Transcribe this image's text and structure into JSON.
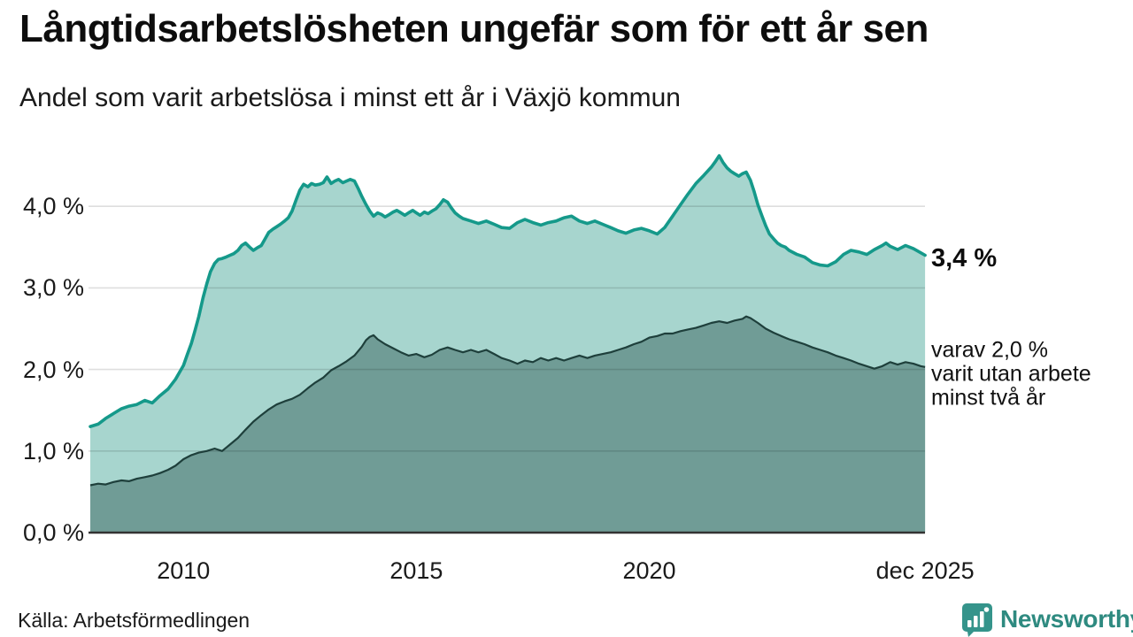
{
  "title": "Långtidsarbetslösheten ungefär som för ett år sen",
  "subtitle": "Andel som varit arbetslösa i minst ett år i Växjö kommun",
  "source": "Källa: Arbetsförmedlingen",
  "brand": {
    "name": "Newsworthy",
    "color": "#2e8a80",
    "icon_color": "#35948b"
  },
  "annotations": {
    "total": {
      "label": "3,4 %"
    },
    "subset": {
      "lines": [
        "varav 2,0 %",
        "varit utan arbete",
        "minst två år"
      ]
    }
  },
  "chart_data": {
    "type": "area",
    "title": "Långtidsarbetslösheten ungefär som för ett år sen",
    "subtitle_as_ylabel": "Andel som varit arbetslösa i minst ett år i Växjö kommun",
    "xlabel": "",
    "ylabel": "",
    "xlim": [
      2008.0,
      2025.92
    ],
    "ylim": [
      0,
      4.9
    ],
    "grid": true,
    "grid_values": [
      1,
      2,
      3,
      4
    ],
    "y_ticks": [
      {
        "value": 0,
        "label": "0,0 %"
      },
      {
        "value": 1,
        "label": "1,0 %"
      },
      {
        "value": 2,
        "label": "2,0 %"
      },
      {
        "value": 3,
        "label": "3,0 %"
      },
      {
        "value": 4,
        "label": "4,0 %"
      }
    ],
    "x_ticks": [
      {
        "value": 2010,
        "label": "2010"
      },
      {
        "value": 2015,
        "label": "2015"
      },
      {
        "value": 2020,
        "label": "2020"
      },
      {
        "value": 2025.92,
        "label": "dec 2025"
      }
    ],
    "colors": {
      "total_line": "#15998a",
      "total_fill": "#a7d5ce",
      "subset_line": "#1e3f3b",
      "subset_fill": "#709c96",
      "gridline": "rgba(0,0,0,0.13)",
      "baseline": "#333333"
    },
    "series": [
      {
        "name": "Andel arbetslösa minst ett år",
        "end_label": "3,4 %",
        "end_value": 3.4,
        "points": [
          [
            2008.0,
            1.3
          ],
          [
            2008.17,
            1.33
          ],
          [
            2008.33,
            1.4
          ],
          [
            2008.5,
            1.46
          ],
          [
            2008.67,
            1.52
          ],
          [
            2008.83,
            1.55
          ],
          [
            2009.0,
            1.57
          ],
          [
            2009.17,
            1.62
          ],
          [
            2009.33,
            1.59
          ],
          [
            2009.5,
            1.68
          ],
          [
            2009.67,
            1.76
          ],
          [
            2009.83,
            1.88
          ],
          [
            2010.0,
            2.05
          ],
          [
            2010.08,
            2.18
          ],
          [
            2010.17,
            2.32
          ],
          [
            2010.25,
            2.48
          ],
          [
            2010.33,
            2.65
          ],
          [
            2010.42,
            2.88
          ],
          [
            2010.5,
            3.05
          ],
          [
            2010.58,
            3.2
          ],
          [
            2010.67,
            3.3
          ],
          [
            2010.75,
            3.35
          ],
          [
            2010.83,
            3.36
          ],
          [
            2010.92,
            3.38
          ],
          [
            2011.0,
            3.4
          ],
          [
            2011.08,
            3.42
          ],
          [
            2011.17,
            3.46
          ],
          [
            2011.25,
            3.52
          ],
          [
            2011.33,
            3.55
          ],
          [
            2011.42,
            3.5
          ],
          [
            2011.5,
            3.46
          ],
          [
            2011.58,
            3.49
          ],
          [
            2011.67,
            3.52
          ],
          [
            2011.75,
            3.6
          ],
          [
            2011.83,
            3.68
          ],
          [
            2011.92,
            3.72
          ],
          [
            2012.0,
            3.75
          ],
          [
            2012.08,
            3.78
          ],
          [
            2012.17,
            3.82
          ],
          [
            2012.25,
            3.86
          ],
          [
            2012.33,
            3.94
          ],
          [
            2012.42,
            4.08
          ],
          [
            2012.5,
            4.2
          ],
          [
            2012.58,
            4.27
          ],
          [
            2012.67,
            4.24
          ],
          [
            2012.75,
            4.28
          ],
          [
            2012.83,
            4.26
          ],
          [
            2012.92,
            4.27
          ],
          [
            2013.0,
            4.29
          ],
          [
            2013.08,
            4.36
          ],
          [
            2013.17,
            4.28
          ],
          [
            2013.25,
            4.31
          ],
          [
            2013.33,
            4.33
          ],
          [
            2013.42,
            4.29
          ],
          [
            2013.5,
            4.31
          ],
          [
            2013.58,
            4.33
          ],
          [
            2013.67,
            4.31
          ],
          [
            2013.75,
            4.22
          ],
          [
            2013.83,
            4.12
          ],
          [
            2013.92,
            4.02
          ],
          [
            2014.0,
            3.94
          ],
          [
            2014.08,
            3.88
          ],
          [
            2014.17,
            3.92
          ],
          [
            2014.25,
            3.9
          ],
          [
            2014.33,
            3.87
          ],
          [
            2014.42,
            3.9
          ],
          [
            2014.5,
            3.93
          ],
          [
            2014.58,
            3.95
          ],
          [
            2014.67,
            3.92
          ],
          [
            2014.75,
            3.89
          ],
          [
            2014.83,
            3.92
          ],
          [
            2014.92,
            3.95
          ],
          [
            2015.0,
            3.92
          ],
          [
            2015.08,
            3.89
          ],
          [
            2015.17,
            3.93
          ],
          [
            2015.25,
            3.91
          ],
          [
            2015.33,
            3.94
          ],
          [
            2015.42,
            3.97
          ],
          [
            2015.5,
            4.02
          ],
          [
            2015.58,
            4.08
          ],
          [
            2015.67,
            4.05
          ],
          [
            2015.75,
            3.98
          ],
          [
            2015.83,
            3.92
          ],
          [
            2015.92,
            3.88
          ],
          [
            2016.0,
            3.85
          ],
          [
            2016.17,
            3.82
          ],
          [
            2016.33,
            3.79
          ],
          [
            2016.5,
            3.82
          ],
          [
            2016.67,
            3.78
          ],
          [
            2016.83,
            3.74
          ],
          [
            2017.0,
            3.73
          ],
          [
            2017.17,
            3.8
          ],
          [
            2017.33,
            3.84
          ],
          [
            2017.5,
            3.8
          ],
          [
            2017.67,
            3.77
          ],
          [
            2017.83,
            3.8
          ],
          [
            2018.0,
            3.82
          ],
          [
            2018.17,
            3.86
          ],
          [
            2018.33,
            3.88
          ],
          [
            2018.5,
            3.82
          ],
          [
            2018.67,
            3.79
          ],
          [
            2018.83,
            3.82
          ],
          [
            2019.0,
            3.78
          ],
          [
            2019.17,
            3.74
          ],
          [
            2019.33,
            3.7
          ],
          [
            2019.5,
            3.67
          ],
          [
            2019.67,
            3.71
          ],
          [
            2019.83,
            3.73
          ],
          [
            2020.0,
            3.7
          ],
          [
            2020.17,
            3.66
          ],
          [
            2020.33,
            3.74
          ],
          [
            2020.5,
            3.88
          ],
          [
            2020.67,
            4.02
          ],
          [
            2020.83,
            4.15
          ],
          [
            2021.0,
            4.28
          ],
          [
            2021.17,
            4.38
          ],
          [
            2021.33,
            4.48
          ],
          [
            2021.42,
            4.55
          ],
          [
            2021.5,
            4.62
          ],
          [
            2021.58,
            4.54
          ],
          [
            2021.67,
            4.47
          ],
          [
            2021.75,
            4.43
          ],
          [
            2021.83,
            4.4
          ],
          [
            2021.92,
            4.37
          ],
          [
            2022.0,
            4.4
          ],
          [
            2022.08,
            4.42
          ],
          [
            2022.17,
            4.32
          ],
          [
            2022.25,
            4.18
          ],
          [
            2022.33,
            4.02
          ],
          [
            2022.42,
            3.88
          ],
          [
            2022.5,
            3.76
          ],
          [
            2022.58,
            3.66
          ],
          [
            2022.67,
            3.6
          ],
          [
            2022.75,
            3.55
          ],
          [
            2022.83,
            3.52
          ],
          [
            2022.92,
            3.5
          ],
          [
            2023.0,
            3.46
          ],
          [
            2023.17,
            3.41
          ],
          [
            2023.33,
            3.38
          ],
          [
            2023.5,
            3.31
          ],
          [
            2023.67,
            3.28
          ],
          [
            2023.83,
            3.27
          ],
          [
            2024.0,
            3.32
          ],
          [
            2024.17,
            3.41
          ],
          [
            2024.33,
            3.46
          ],
          [
            2024.5,
            3.44
          ],
          [
            2024.67,
            3.41
          ],
          [
            2024.83,
            3.47
          ],
          [
            2025.0,
            3.52
          ],
          [
            2025.08,
            3.55
          ],
          [
            2025.17,
            3.51
          ],
          [
            2025.33,
            3.47
          ],
          [
            2025.5,
            3.52
          ],
          [
            2025.67,
            3.48
          ],
          [
            2025.83,
            3.43
          ],
          [
            2025.92,
            3.4
          ]
        ]
      },
      {
        "name": "varav utan arbete minst två år",
        "end_label": "varav 2,0 % varit utan arbete minst två år",
        "end_value": 2.0,
        "points": [
          [
            2008.0,
            0.58
          ],
          [
            2008.17,
            0.6
          ],
          [
            2008.33,
            0.59
          ],
          [
            2008.5,
            0.62
          ],
          [
            2008.67,
            0.64
          ],
          [
            2008.83,
            0.63
          ],
          [
            2009.0,
            0.66
          ],
          [
            2009.17,
            0.68
          ],
          [
            2009.33,
            0.7
          ],
          [
            2009.5,
            0.73
          ],
          [
            2009.67,
            0.77
          ],
          [
            2009.83,
            0.82
          ],
          [
            2010.0,
            0.9
          ],
          [
            2010.17,
            0.95
          ],
          [
            2010.33,
            0.98
          ],
          [
            2010.5,
            1.0
          ],
          [
            2010.67,
            1.03
          ],
          [
            2010.83,
            1.0
          ],
          [
            2011.0,
            1.08
          ],
          [
            2011.17,
            1.16
          ],
          [
            2011.33,
            1.26
          ],
          [
            2011.5,
            1.36
          ],
          [
            2011.67,
            1.44
          ],
          [
            2011.83,
            1.51
          ],
          [
            2012.0,
            1.57
          ],
          [
            2012.17,
            1.61
          ],
          [
            2012.33,
            1.64
          ],
          [
            2012.5,
            1.69
          ],
          [
            2012.67,
            1.77
          ],
          [
            2012.83,
            1.84
          ],
          [
            2013.0,
            1.9
          ],
          [
            2013.17,
            1.99
          ],
          [
            2013.33,
            2.04
          ],
          [
            2013.5,
            2.1
          ],
          [
            2013.67,
            2.17
          ],
          [
            2013.83,
            2.28
          ],
          [
            2013.92,
            2.36
          ],
          [
            2014.0,
            2.4
          ],
          [
            2014.08,
            2.42
          ],
          [
            2014.17,
            2.37
          ],
          [
            2014.33,
            2.31
          ],
          [
            2014.5,
            2.26
          ],
          [
            2014.67,
            2.21
          ],
          [
            2014.83,
            2.17
          ],
          [
            2015.0,
            2.19
          ],
          [
            2015.17,
            2.15
          ],
          [
            2015.33,
            2.18
          ],
          [
            2015.5,
            2.24
          ],
          [
            2015.67,
            2.27
          ],
          [
            2015.83,
            2.24
          ],
          [
            2016.0,
            2.21
          ],
          [
            2016.17,
            2.24
          ],
          [
            2016.33,
            2.21
          ],
          [
            2016.5,
            2.24
          ],
          [
            2016.67,
            2.19
          ],
          [
            2016.83,
            2.14
          ],
          [
            2017.0,
            2.11
          ],
          [
            2017.17,
            2.07
          ],
          [
            2017.33,
            2.11
          ],
          [
            2017.5,
            2.09
          ],
          [
            2017.67,
            2.14
          ],
          [
            2017.83,
            2.11
          ],
          [
            2018.0,
            2.14
          ],
          [
            2018.17,
            2.11
          ],
          [
            2018.33,
            2.14
          ],
          [
            2018.5,
            2.17
          ],
          [
            2018.67,
            2.14
          ],
          [
            2018.83,
            2.17
          ],
          [
            2019.0,
            2.19
          ],
          [
            2019.17,
            2.21
          ],
          [
            2019.33,
            2.24
          ],
          [
            2019.5,
            2.27
          ],
          [
            2019.67,
            2.31
          ],
          [
            2019.83,
            2.34
          ],
          [
            2020.0,
            2.39
          ],
          [
            2020.17,
            2.41
          ],
          [
            2020.33,
            2.44
          ],
          [
            2020.5,
            2.44
          ],
          [
            2020.67,
            2.47
          ],
          [
            2020.83,
            2.49
          ],
          [
            2021.0,
            2.51
          ],
          [
            2021.17,
            2.54
          ],
          [
            2021.33,
            2.57
          ],
          [
            2021.5,
            2.59
          ],
          [
            2021.67,
            2.57
          ],
          [
            2021.83,
            2.6
          ],
          [
            2022.0,
            2.62
          ],
          [
            2022.08,
            2.65
          ],
          [
            2022.17,
            2.63
          ],
          [
            2022.33,
            2.57
          ],
          [
            2022.5,
            2.5
          ],
          [
            2022.67,
            2.45
          ],
          [
            2022.83,
            2.41
          ],
          [
            2023.0,
            2.37
          ],
          [
            2023.17,
            2.34
          ],
          [
            2023.33,
            2.31
          ],
          [
            2023.5,
            2.27
          ],
          [
            2023.67,
            2.24
          ],
          [
            2023.83,
            2.21
          ],
          [
            2024.0,
            2.17
          ],
          [
            2024.17,
            2.14
          ],
          [
            2024.33,
            2.11
          ],
          [
            2024.5,
            2.07
          ],
          [
            2024.67,
            2.04
          ],
          [
            2024.83,
            2.01
          ],
          [
            2025.0,
            2.04
          ],
          [
            2025.17,
            2.09
          ],
          [
            2025.33,
            2.06
          ],
          [
            2025.5,
            2.09
          ],
          [
            2025.67,
            2.07
          ],
          [
            2025.83,
            2.04
          ],
          [
            2025.92,
            2.03
          ]
        ]
      }
    ]
  }
}
